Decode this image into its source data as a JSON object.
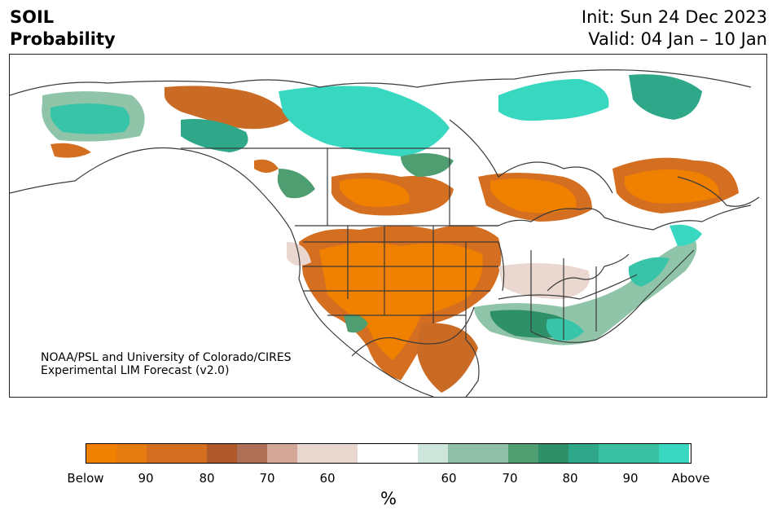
{
  "title": {
    "line1": "SOIL",
    "line2": "Probability"
  },
  "dates": {
    "init": "Init: Sun 24 Dec 2023",
    "valid": "Valid: 04 Jan – 10 Jan"
  },
  "credit": {
    "line1": "NOAA/PSL and University of Colorado/CIRES",
    "line2": "Experimental LIM Forecast (v2.0)"
  },
  "colors": {
    "below": [
      "#f08000",
      "#e57c10",
      "#d46e20",
      "#c96a25",
      "#b05a2c",
      "#b07058",
      "#d4a898",
      "#ead8d0"
    ],
    "neutral": "#ffffff",
    "above": [
      "#cde5da",
      "#90c4a8",
      "#90c0a8",
      "#4e9e72",
      "#2e9068",
      "#2ea888",
      "#38c0a0",
      "#38c4a8",
      "#38d8c0"
    ],
    "borders": "#3a3a3a"
  },
  "colorbar": {
    "tick_labels": [
      "Below",
      "90",
      "80",
      "70",
      "60",
      "60",
      "70",
      "80",
      "90",
      "Above"
    ],
    "unit": "%"
  }
}
